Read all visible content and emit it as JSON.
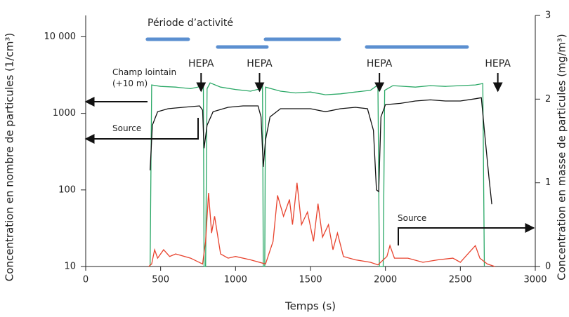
{
  "chart_data": {
    "type": "line",
    "x_label": "Temps (s)",
    "y_label": "Concentration en nombre de particules (1/cm³)",
    "y2_label": "Concentration en masse de particules (mg/m³)",
    "xlim": [
      0,
      3000
    ],
    "xticks": [
      0,
      500,
      1000,
      1500,
      2000,
      2500,
      3000
    ],
    "ylim": [
      10,
      19000
    ],
    "log_y": true,
    "yticks": [
      10,
      100,
      1000,
      {
        "value": 10000,
        "label": "10 000"
      }
    ],
    "y2lim": [
      0,
      3
    ],
    "y2ticks": [
      0,
      1,
      2,
      3
    ],
    "grid": false,
    "activity": {
      "label": "Période d’activité",
      "color": "#5b8fd0",
      "periods": [
        [
          412,
          684
        ],
        [
          881,
          1209
        ],
        [
          1200,
          1692
        ],
        [
          1875,
          2545
        ]
      ]
    },
    "hepa_events": [
      {
        "label": "HEPA",
        "x": 770
      },
      {
        "label": "HEPA",
        "x": 1160
      },
      {
        "label": "HEPA",
        "x": 1960
      },
      {
        "label": "HEPA",
        "x": 2750
      }
    ],
    "series": [
      {
        "name": "Champ lointain (+10 m)",
        "color": "#2aa866",
        "axis": "y",
        "x": [
          430,
          440,
          500,
          600,
          700,
          770,
          785,
          790,
          800,
          810,
          830,
          900,
          1000,
          1100,
          1170,
          1180,
          1185,
          1195,
          1200,
          1300,
          1400,
          1500,
          1600,
          1700,
          1800,
          1900,
          1950,
          1960,
          1985,
          1995,
          2050,
          2200,
          2300,
          2400,
          2500,
          2600,
          2650,
          2660
        ],
        "values": [
          10,
          2350,
          2250,
          2200,
          2100,
          2250,
          2400,
          10,
          10,
          2100,
          2500,
          2200,
          2050,
          1950,
          2100,
          2400,
          10,
          10,
          2200,
          1950,
          1850,
          1900,
          1750,
          1800,
          1900,
          2000,
          2350,
          10,
          10,
          2000,
          2300,
          2200,
          2300,
          2250,
          2300,
          2350,
          2450,
          10
        ]
      },
      {
        "name": "Source",
        "color": "#111111",
        "axis": "y",
        "x": [
          430,
          445,
          480,
          550,
          650,
          760,
          780,
          790,
          810,
          850,
          950,
          1050,
          1150,
          1170,
          1185,
          1200,
          1230,
          1300,
          1400,
          1500,
          1600,
          1700,
          1800,
          1880,
          1920,
          1940,
          1955,
          1970,
          2000,
          2100,
          2200,
          2300,
          2400,
          2500,
          2600,
          2640,
          2660,
          2690,
          2710
        ],
        "values": [
          180,
          700,
          1050,
          1150,
          1200,
          1250,
          1100,
          350,
          700,
          1050,
          1200,
          1250,
          1250,
          900,
          200,
          450,
          900,
          1150,
          1150,
          1150,
          1050,
          1150,
          1200,
          1150,
          600,
          100,
          95,
          900,
          1300,
          1350,
          1450,
          1500,
          1450,
          1450,
          1550,
          1600,
          600,
          150,
          65
        ]
      },
      {
        "name": "Source",
        "color": "#e8432e",
        "axis": "y2",
        "x": [
          420,
          440,
          460,
          480,
          520,
          560,
          600,
          700,
          780,
          800,
          820,
          840,
          860,
          900,
          950,
          1000,
          1100,
          1200,
          1250,
          1280,
          1320,
          1360,
          1380,
          1410,
          1440,
          1480,
          1520,
          1550,
          1580,
          1620,
          1650,
          1680,
          1720,
          1800,
          1900,
          1950,
          2010,
          2030,
          2060,
          2150,
          2250,
          2350,
          2450,
          2500,
          2550,
          2600,
          2630,
          2680,
          2730
        ],
        "values": [
          0,
          0.03,
          0.2,
          0.1,
          0.2,
          0.12,
          0.15,
          0.1,
          0.03,
          0.3,
          0.88,
          0.4,
          0.6,
          0.15,
          0.1,
          0.12,
          0.08,
          0.03,
          0.3,
          0.85,
          0.6,
          0.8,
          0.5,
          1.0,
          0.5,
          0.65,
          0.3,
          0.75,
          0.35,
          0.5,
          0.2,
          0.4,
          0.12,
          0.08,
          0.05,
          0.02,
          0.12,
          0.25,
          0.1,
          0.1,
          0.05,
          0.08,
          0.1,
          0.05,
          0.15,
          0.25,
          0.1,
          0.03,
          0
        ]
      }
    ]
  }
}
